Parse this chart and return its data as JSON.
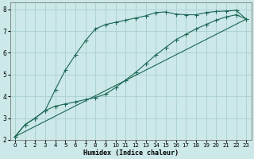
{
  "xlabel": "Humidex (Indice chaleur)",
  "xlim": [
    -0.5,
    23.5
  ],
  "ylim": [
    2,
    8.3
  ],
  "xticks": [
    0,
    1,
    2,
    3,
    4,
    5,
    6,
    7,
    8,
    9,
    10,
    11,
    12,
    13,
    14,
    15,
    16,
    17,
    18,
    19,
    20,
    21,
    22,
    23
  ],
  "yticks": [
    2,
    3,
    4,
    5,
    6,
    7,
    8
  ],
  "background_color": "#cce8e8",
  "grid_color": "#aacece",
  "line_color": "#1a6655",
  "line1_x": [
    0,
    1,
    2,
    3,
    4,
    5,
    6,
    7,
    8,
    9,
    10,
    11,
    12,
    13,
    14,
    15,
    16,
    17,
    18,
    19,
    20,
    21,
    22,
    23
  ],
  "line1_y": [
    2.15,
    2.7,
    3.0,
    3.35,
    4.3,
    5.2,
    5.9,
    6.55,
    7.1,
    7.3,
    7.4,
    7.5,
    7.6,
    7.7,
    7.85,
    7.88,
    7.78,
    7.75,
    7.75,
    7.85,
    7.9,
    7.92,
    7.95,
    7.55
  ],
  "line2_x": [
    0,
    1,
    2,
    3,
    4,
    5,
    6,
    7,
    8,
    9,
    10,
    11,
    12,
    13,
    14,
    15,
    16,
    17,
    18,
    19,
    20,
    21,
    22,
    23
  ],
  "line2_y": [
    2.15,
    2.7,
    3.0,
    3.35,
    3.55,
    3.65,
    3.75,
    3.85,
    3.95,
    4.1,
    4.4,
    4.75,
    5.1,
    5.5,
    5.9,
    6.25,
    6.6,
    6.85,
    7.1,
    7.3,
    7.5,
    7.65,
    7.75,
    7.55
  ],
  "line3_x": [
    0,
    23
  ],
  "line3_y": [
    2.15,
    7.55
  ]
}
